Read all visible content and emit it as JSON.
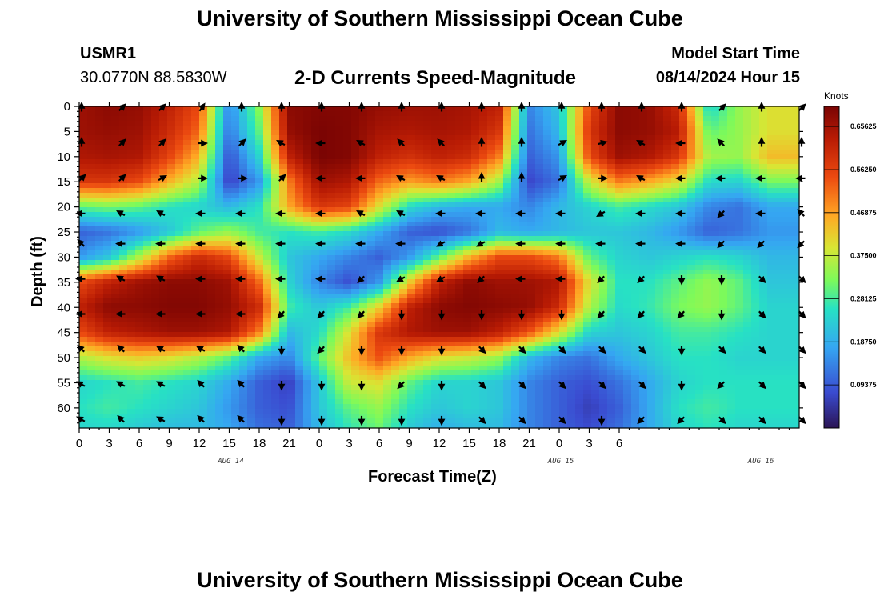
{
  "header": {
    "title_top": "University of Southern Mississippi Ocean Cube",
    "title_bottom": "University of Southern Mississippi Ocean Cube",
    "station": "USMR1",
    "coords": "30.0770N  88.5830W",
    "subtitle": "2-D Currents Speed-Magnitude",
    "model_label": "Model Start Time",
    "model_time": "08/14/2024 Hour 15"
  },
  "colors": {
    "arrow": "#000000",
    "scale": [
      "#2b1454",
      "#3a4bd0",
      "#35a6f2",
      "#27e1c4",
      "#7dfa5a",
      "#d8e634",
      "#ffa824",
      "#ec4a10",
      "#b81b04",
      "#7a0403"
    ]
  },
  "chart_data": {
    "type": "heatmap",
    "xlabel": "Forecast Time(Z)",
    "ylabel": "Depth (ft)",
    "colorbar_unit": "Knots",
    "x_hours": [
      0,
      72
    ],
    "ylim": [
      0,
      64
    ],
    "x_tick_labels": [
      "0",
      "3",
      "6",
      "9",
      "12",
      "15",
      "18",
      "21",
      "0",
      "3",
      "6",
      "9",
      "12",
      "15",
      "18",
      "21",
      "0",
      "3",
      "6"
    ],
    "x_tick_hours": [
      0,
      3,
      6,
      9,
      12,
      15,
      18,
      21,
      24,
      27,
      30,
      33,
      36,
      39,
      42,
      45,
      48,
      51,
      54
    ],
    "y_ticks": [
      0,
      5,
      10,
      15,
      20,
      25,
      30,
      35,
      40,
      45,
      50,
      55,
      60
    ],
    "date_labels": [
      {
        "text": "AUG 14",
        "hour": 15
      },
      {
        "text": "AUG 15",
        "hour": 48
      },
      {
        "text": "AUG 16",
        "hour": 68
      }
    ],
    "colorbar_range": [
      0,
      0.7
    ],
    "colorbar_ticks": [
      "0.09375",
      "0.18750",
      "0.28125",
      "0.37500",
      "0.46875",
      "0.56250",
      "0.65625"
    ],
    "colorbar_values": [
      0.09375,
      0.1875,
      0.28125,
      0.375,
      0.46875,
      0.5625,
      0.65625
    ],
    "arrow_x_hours": [
      0,
      4,
      8,
      12,
      16,
      20,
      24,
      28,
      32,
      36,
      40,
      44,
      48,
      52,
      56,
      60,
      64,
      68,
      72
    ],
    "arrow_depths": [
      0,
      7,
      14,
      21,
      27,
      34,
      41,
      48,
      55,
      62
    ],
    "speed_grid_note": "x: 24 samples over hours 0..72 (3h), y: depths 0,5,...,65 ft",
    "speed_grid": [
      [
        0.66,
        0.68,
        0.67,
        0.62,
        0.55,
        0.14,
        0.33,
        0.68,
        0.69,
        0.69,
        0.67,
        0.66,
        0.66,
        0.65,
        0.62,
        0.14,
        0.22,
        0.55,
        0.68,
        0.67,
        0.6,
        0.24,
        0.34,
        0.4
      ],
      [
        0.66,
        0.67,
        0.66,
        0.6,
        0.52,
        0.12,
        0.3,
        0.67,
        0.7,
        0.69,
        0.65,
        0.64,
        0.65,
        0.64,
        0.58,
        0.12,
        0.2,
        0.58,
        0.68,
        0.67,
        0.63,
        0.3,
        0.34,
        0.4
      ],
      [
        0.64,
        0.65,
        0.64,
        0.56,
        0.45,
        0.08,
        0.24,
        0.62,
        0.7,
        0.69,
        0.62,
        0.59,
        0.62,
        0.6,
        0.5,
        0.1,
        0.16,
        0.55,
        0.66,
        0.64,
        0.58,
        0.35,
        0.34,
        0.44
      ],
      [
        0.58,
        0.58,
        0.55,
        0.45,
        0.36,
        0.06,
        0.16,
        0.5,
        0.66,
        0.64,
        0.52,
        0.47,
        0.5,
        0.46,
        0.35,
        0.07,
        0.12,
        0.38,
        0.5,
        0.46,
        0.4,
        0.25,
        0.24,
        0.32
      ],
      [
        0.3,
        0.32,
        0.3,
        0.26,
        0.24,
        0.2,
        0.26,
        0.46,
        0.58,
        0.56,
        0.4,
        0.25,
        0.2,
        0.18,
        0.18,
        0.14,
        0.2,
        0.24,
        0.28,
        0.25,
        0.22,
        0.14,
        0.12,
        0.18
      ],
      [
        0.1,
        0.12,
        0.16,
        0.22,
        0.3,
        0.34,
        0.28,
        0.26,
        0.28,
        0.25,
        0.18,
        0.1,
        0.08,
        0.12,
        0.2,
        0.18,
        0.2,
        0.22,
        0.22,
        0.2,
        0.16,
        0.1,
        0.12,
        0.16
      ],
      [
        0.16,
        0.22,
        0.36,
        0.52,
        0.6,
        0.55,
        0.38,
        0.22,
        0.18,
        0.14,
        0.1,
        0.16,
        0.3,
        0.45,
        0.55,
        0.55,
        0.5,
        0.3,
        0.24,
        0.22,
        0.24,
        0.26,
        0.24,
        0.2
      ],
      [
        0.55,
        0.62,
        0.66,
        0.68,
        0.68,
        0.66,
        0.52,
        0.24,
        0.14,
        0.08,
        0.16,
        0.42,
        0.62,
        0.68,
        0.66,
        0.66,
        0.64,
        0.4,
        0.26,
        0.26,
        0.3,
        0.34,
        0.3,
        0.22
      ],
      [
        0.62,
        0.68,
        0.68,
        0.69,
        0.69,
        0.67,
        0.6,
        0.28,
        0.22,
        0.28,
        0.42,
        0.62,
        0.68,
        0.69,
        0.68,
        0.67,
        0.6,
        0.36,
        0.25,
        0.27,
        0.32,
        0.34,
        0.3,
        0.24
      ],
      [
        0.55,
        0.62,
        0.64,
        0.66,
        0.66,
        0.64,
        0.5,
        0.2,
        0.25,
        0.4,
        0.58,
        0.64,
        0.66,
        0.66,
        0.62,
        0.54,
        0.4,
        0.24,
        0.22,
        0.24,
        0.28,
        0.28,
        0.26,
        0.24
      ],
      [
        0.36,
        0.4,
        0.42,
        0.4,
        0.36,
        0.3,
        0.18,
        0.14,
        0.3,
        0.44,
        0.54,
        0.46,
        0.4,
        0.38,
        0.34,
        0.2,
        0.14,
        0.12,
        0.18,
        0.22,
        0.26,
        0.26,
        0.24,
        0.24
      ],
      [
        0.24,
        0.26,
        0.28,
        0.26,
        0.24,
        0.18,
        0.1,
        0.06,
        0.22,
        0.38,
        0.4,
        0.3,
        0.24,
        0.24,
        0.22,
        0.14,
        0.1,
        0.08,
        0.12,
        0.18,
        0.24,
        0.26,
        0.26,
        0.26
      ],
      [
        0.26,
        0.28,
        0.26,
        0.24,
        0.22,
        0.16,
        0.1,
        0.08,
        0.22,
        0.3,
        0.34,
        0.26,
        0.22,
        0.24,
        0.22,
        0.14,
        0.1,
        0.06,
        0.1,
        0.18,
        0.26,
        0.28,
        0.26,
        0.26
      ],
      [
        0.24,
        0.24,
        0.22,
        0.2,
        0.2,
        0.18,
        0.12,
        0.1,
        0.2,
        0.26,
        0.3,
        0.22,
        0.18,
        0.2,
        0.2,
        0.14,
        0.1,
        0.08,
        0.12,
        0.18,
        0.24,
        0.26,
        0.24,
        0.24
      ]
    ],
    "arrow_dirs_deg": [
      [
        0,
        45,
        45,
        35,
        0,
        0,
        0,
        0,
        0,
        0,
        0,
        0,
        0,
        0,
        0,
        0,
        45,
        0,
        45
      ],
      [
        0,
        45,
        45,
        90,
        45,
        300,
        270,
        300,
        315,
        315,
        0,
        0,
        60,
        75,
        300,
        270,
        315,
        0,
        0
      ],
      [
        45,
        45,
        60,
        90,
        90,
        45,
        270,
        270,
        300,
        300,
        0,
        0,
        60,
        90,
        300,
        270,
        270,
        270,
        270
      ],
      [
        270,
        300,
        300,
        270,
        270,
        270,
        270,
        300,
        300,
        270,
        270,
        270,
        270,
        240,
        270,
        270,
        225,
        270,
        315
      ],
      [
        315,
        270,
        270,
        270,
        270,
        270,
        270,
        270,
        270,
        240,
        240,
        270,
        270,
        270,
        270,
        270,
        225,
        225,
        225
      ],
      [
        270,
        300,
        300,
        270,
        270,
        270,
        270,
        225,
        240,
        240,
        225,
        270,
        270,
        225,
        225,
        180,
        180,
        135,
        135
      ],
      [
        270,
        270,
        270,
        270,
        270,
        225,
        225,
        225,
        180,
        180,
        180,
        180,
        180,
        225,
        225,
        225,
        180,
        135,
        135
      ],
      [
        315,
        315,
        300,
        300,
        315,
        180,
        225,
        180,
        180,
        180,
        135,
        135,
        135,
        135,
        135,
        180,
        135,
        135,
        135
      ],
      [
        300,
        300,
        300,
        315,
        315,
        180,
        180,
        180,
        225,
        180,
        135,
        135,
        135,
        135,
        135,
        180,
        225,
        135,
        135
      ],
      [
        300,
        315,
        300,
        315,
        315,
        180,
        180,
        180,
        180,
        180,
        135,
        135,
        135,
        180,
        225,
        225,
        135,
        135,
        135
      ]
    ]
  }
}
